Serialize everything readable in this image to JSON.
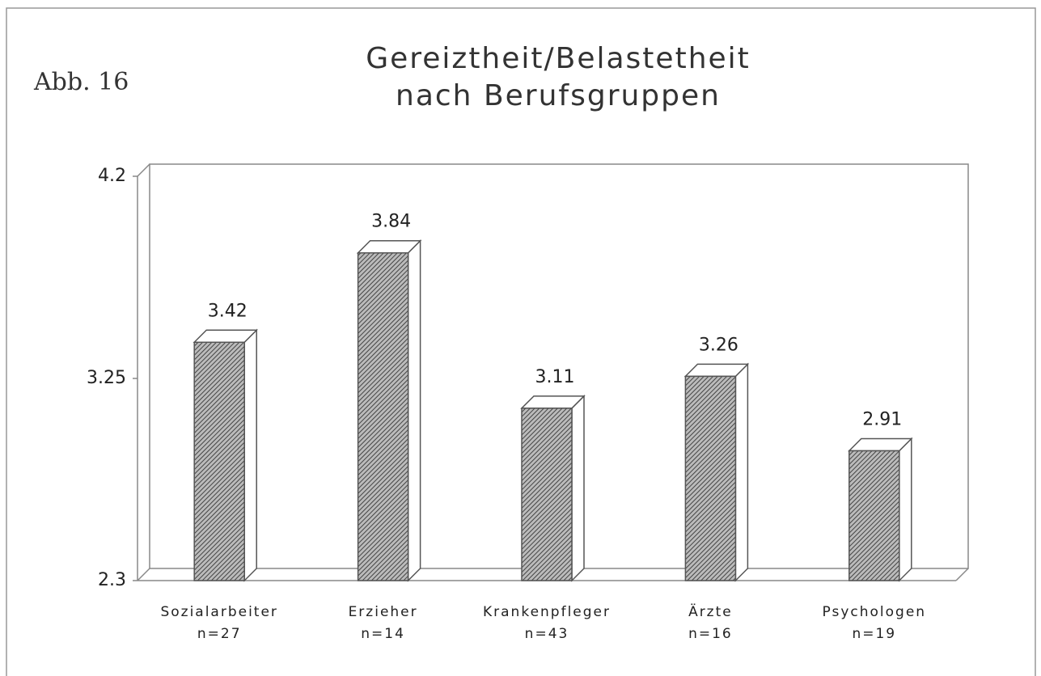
{
  "chart_data": {
    "type": "bar3d",
    "title": "Gereiztheit/Belastetheit\nnach Berufsgruppen",
    "annotations": [
      "Abb. 16"
    ],
    "categories": [
      "Sozialarbeiter",
      "Erzieher",
      "Krankenpfleger",
      "Ärzte",
      "Psychologen"
    ],
    "category_notes": [
      "n=27",
      "n=14",
      "n=43",
      "n=16",
      "n=19"
    ],
    "values": [
      3.42,
      3.84,
      3.11,
      3.26,
      2.91
    ],
    "color": "#555555",
    "ylim": [
      2.3,
      4.2
    ],
    "yticks": [
      2.3,
      3.25,
      4.2
    ],
    "grid": false
  }
}
